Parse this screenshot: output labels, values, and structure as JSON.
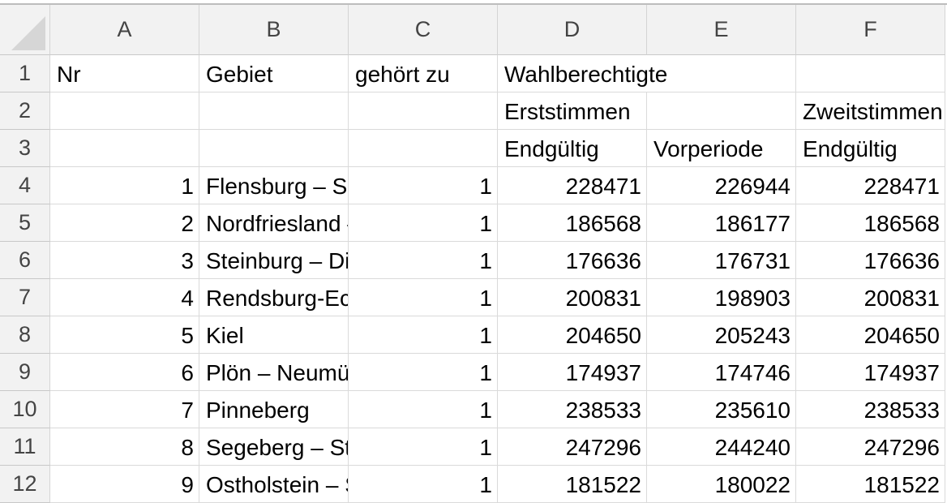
{
  "columns": [
    "A",
    "B",
    "C",
    "D",
    "E",
    "F"
  ],
  "row_numbers": [
    1,
    2,
    3,
    4,
    5,
    6,
    7,
    8,
    9,
    10,
    11,
    12
  ],
  "rows": [
    {
      "A": "Nr",
      "B": "Gebiet",
      "C": "gehört zu",
      "D": "Wahlberechtigte"
    },
    {
      "D": "Erststimmen",
      "F": "Zweitstimmen"
    },
    {
      "D": "Endgültig",
      "E": "Vorperiode",
      "F": "Endgültig"
    },
    {
      "A": 1,
      "B": "Flensburg – Schleswig",
      "C": 1,
      "D": 228471,
      "E": 226944,
      "F": 228471
    },
    {
      "A": 2,
      "B": "Nordfriesland – Dithmarschen Nord",
      "C": 1,
      "D": 186568,
      "E": 186177,
      "F": 186568
    },
    {
      "A": 3,
      "B": "Steinburg – Dithmarschen Süd",
      "C": 1,
      "D": 176636,
      "E": 176731,
      "F": 176636
    },
    {
      "A": 4,
      "B": "Rendsburg-Eckernförde",
      "C": 1,
      "D": 200831,
      "E": 198903,
      "F": 200831
    },
    {
      "A": 5,
      "B": "Kiel",
      "C": 1,
      "D": 204650,
      "E": 205243,
      "F": 204650
    },
    {
      "A": 6,
      "B": "Plön – Neumünster",
      "C": 1,
      "D": 174937,
      "E": 174746,
      "F": 174937
    },
    {
      "A": 7,
      "B": "Pinneberg",
      "C": 1,
      "D": 238533,
      "E": 235610,
      "F": 238533
    },
    {
      "A": 8,
      "B": "Segeberg – Stormarn-Mitte",
      "C": 1,
      "D": 247296,
      "E": 244240,
      "F": 247296
    },
    {
      "A": 9,
      "B": "Ostholstein – Stormarn-Nord",
      "C": 1,
      "D": 181522,
      "E": 180022,
      "F": 181522
    }
  ]
}
